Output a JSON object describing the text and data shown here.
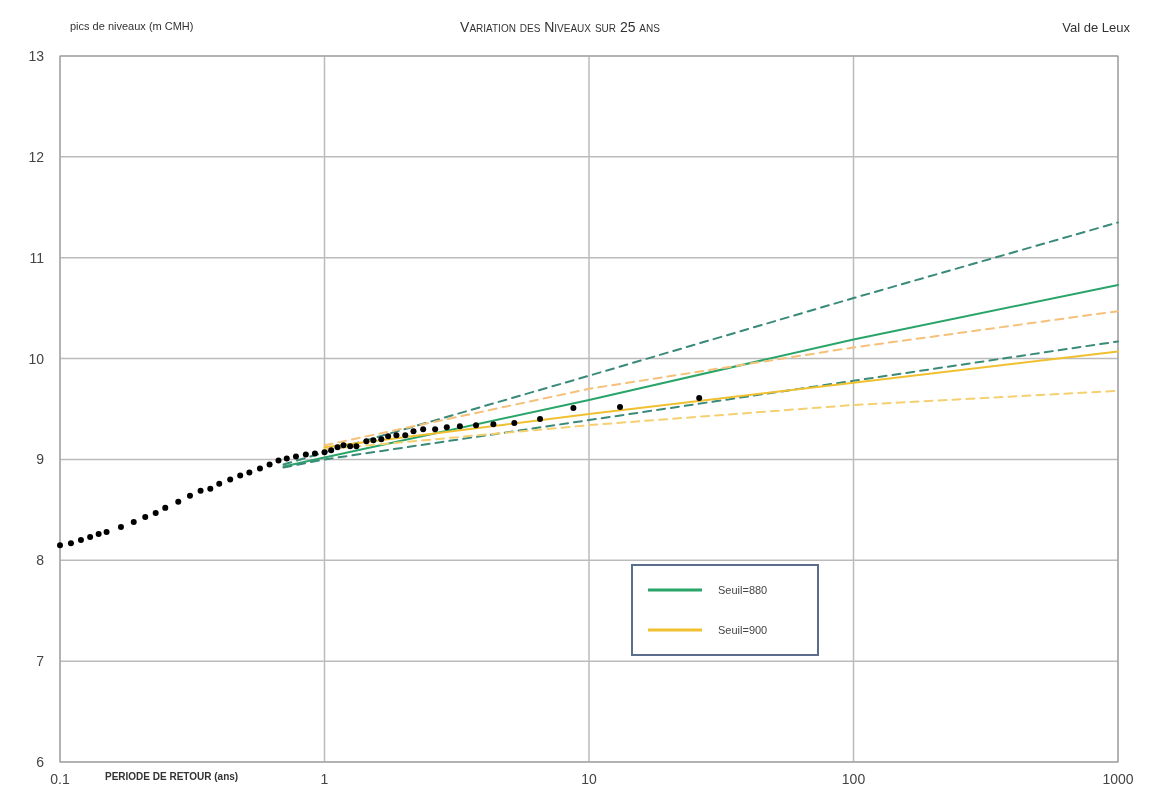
{
  "chart_data": {
    "type": "line",
    "title": "Variation des Niveaux sur 25 ans",
    "ylabel": "pics de niveaux (m CMH)",
    "xlabel": "PERIODE DE RETOUR (ans)",
    "annotations": [
      "Val de Leux"
    ],
    "log": "x",
    "grid": true,
    "legend": "bottom",
    "xlim": [
      0.1,
      1000
    ],
    "xticks": [
      0.1,
      1,
      10,
      100,
      1000
    ],
    "ylim": [
      6,
      13
    ],
    "yticks": [
      6,
      7,
      8,
      9,
      10,
      11,
      12,
      13
    ],
    "series": [
      {
        "type": "line",
        "name": "Seuil=880",
        "color": "#2aa56a",
        "line_style": "solid",
        "x": [
          0.7,
          1,
          10,
          100,
          1000
        ],
        "values": [
          8.93,
          9.02,
          9.59,
          10.19,
          10.73
        ]
      },
      {
        "type": "line",
        "color": "#3a8a7a",
        "line_style": "dashed",
        "x": [
          0.7,
          1,
          10,
          100,
          1000
        ],
        "values": [
          8.95,
          9.07,
          9.83,
          10.6,
          11.35
        ]
      },
      {
        "type": "line",
        "color": "#3a8a7a",
        "line_style": "dashed",
        "x": [
          0.7,
          1,
          10,
          100,
          1000
        ],
        "values": [
          8.92,
          9.0,
          9.39,
          9.78,
          10.17
        ]
      },
      {
        "type": "line",
        "name": "Seuil=900",
        "color": "#f0c030",
        "line_style": "solid",
        "x": [
          1,
          10,
          100,
          1000
        ],
        "values": [
          9.12,
          9.45,
          9.76,
          10.07
        ]
      },
      {
        "type": "line",
        "color": "#f5c07a",
        "line_style": "dashed",
        "x": [
          1,
          10,
          100,
          1000
        ],
        "values": [
          9.14,
          9.7,
          10.11,
          10.47
        ]
      },
      {
        "type": "line",
        "color": "#f5d070",
        "line_style": "dashed",
        "x": [
          1,
          10,
          100,
          1000
        ],
        "values": [
          9.1,
          9.34,
          9.54,
          9.68
        ]
      },
      {
        "type": "scatter",
        "color": "#000000",
        "marker": "circle",
        "x": [
          0.1,
          0.11,
          0.12,
          0.13,
          0.14,
          0.15,
          0.17,
          0.19,
          0.21,
          0.23,
          0.25,
          0.28,
          0.31,
          0.34,
          0.37,
          0.4,
          0.44,
          0.48,
          0.52,
          0.57,
          0.62,
          0.67,
          0.72,
          0.78,
          0.85,
          0.92,
          1.0,
          1.06,
          1.12,
          1.18,
          1.25,
          1.32,
          1.44,
          1.53,
          1.64,
          1.74,
          1.87,
          2.02,
          2.17,
          2.36,
          2.62,
          2.9,
          3.25,
          3.74,
          4.35,
          5.22,
          6.53,
          8.73,
          13.1,
          26.1
        ],
        "values": [
          8.15,
          8.17,
          8.2,
          8.23,
          8.26,
          8.28,
          8.33,
          8.38,
          8.43,
          8.47,
          8.52,
          8.58,
          8.64,
          8.69,
          8.71,
          8.76,
          8.8,
          8.84,
          8.87,
          8.91,
          8.95,
          8.99,
          9.01,
          9.03,
          9.05,
          9.06,
          9.07,
          9.09,
          9.12,
          9.14,
          9.13,
          9.13,
          9.18,
          9.19,
          9.2,
          9.23,
          9.24,
          9.24,
          9.28,
          9.3,
          9.3,
          9.32,
          9.33,
          9.34,
          9.35,
          9.36,
          9.4,
          9.51,
          9.52,
          9.61
        ]
      }
    ]
  }
}
